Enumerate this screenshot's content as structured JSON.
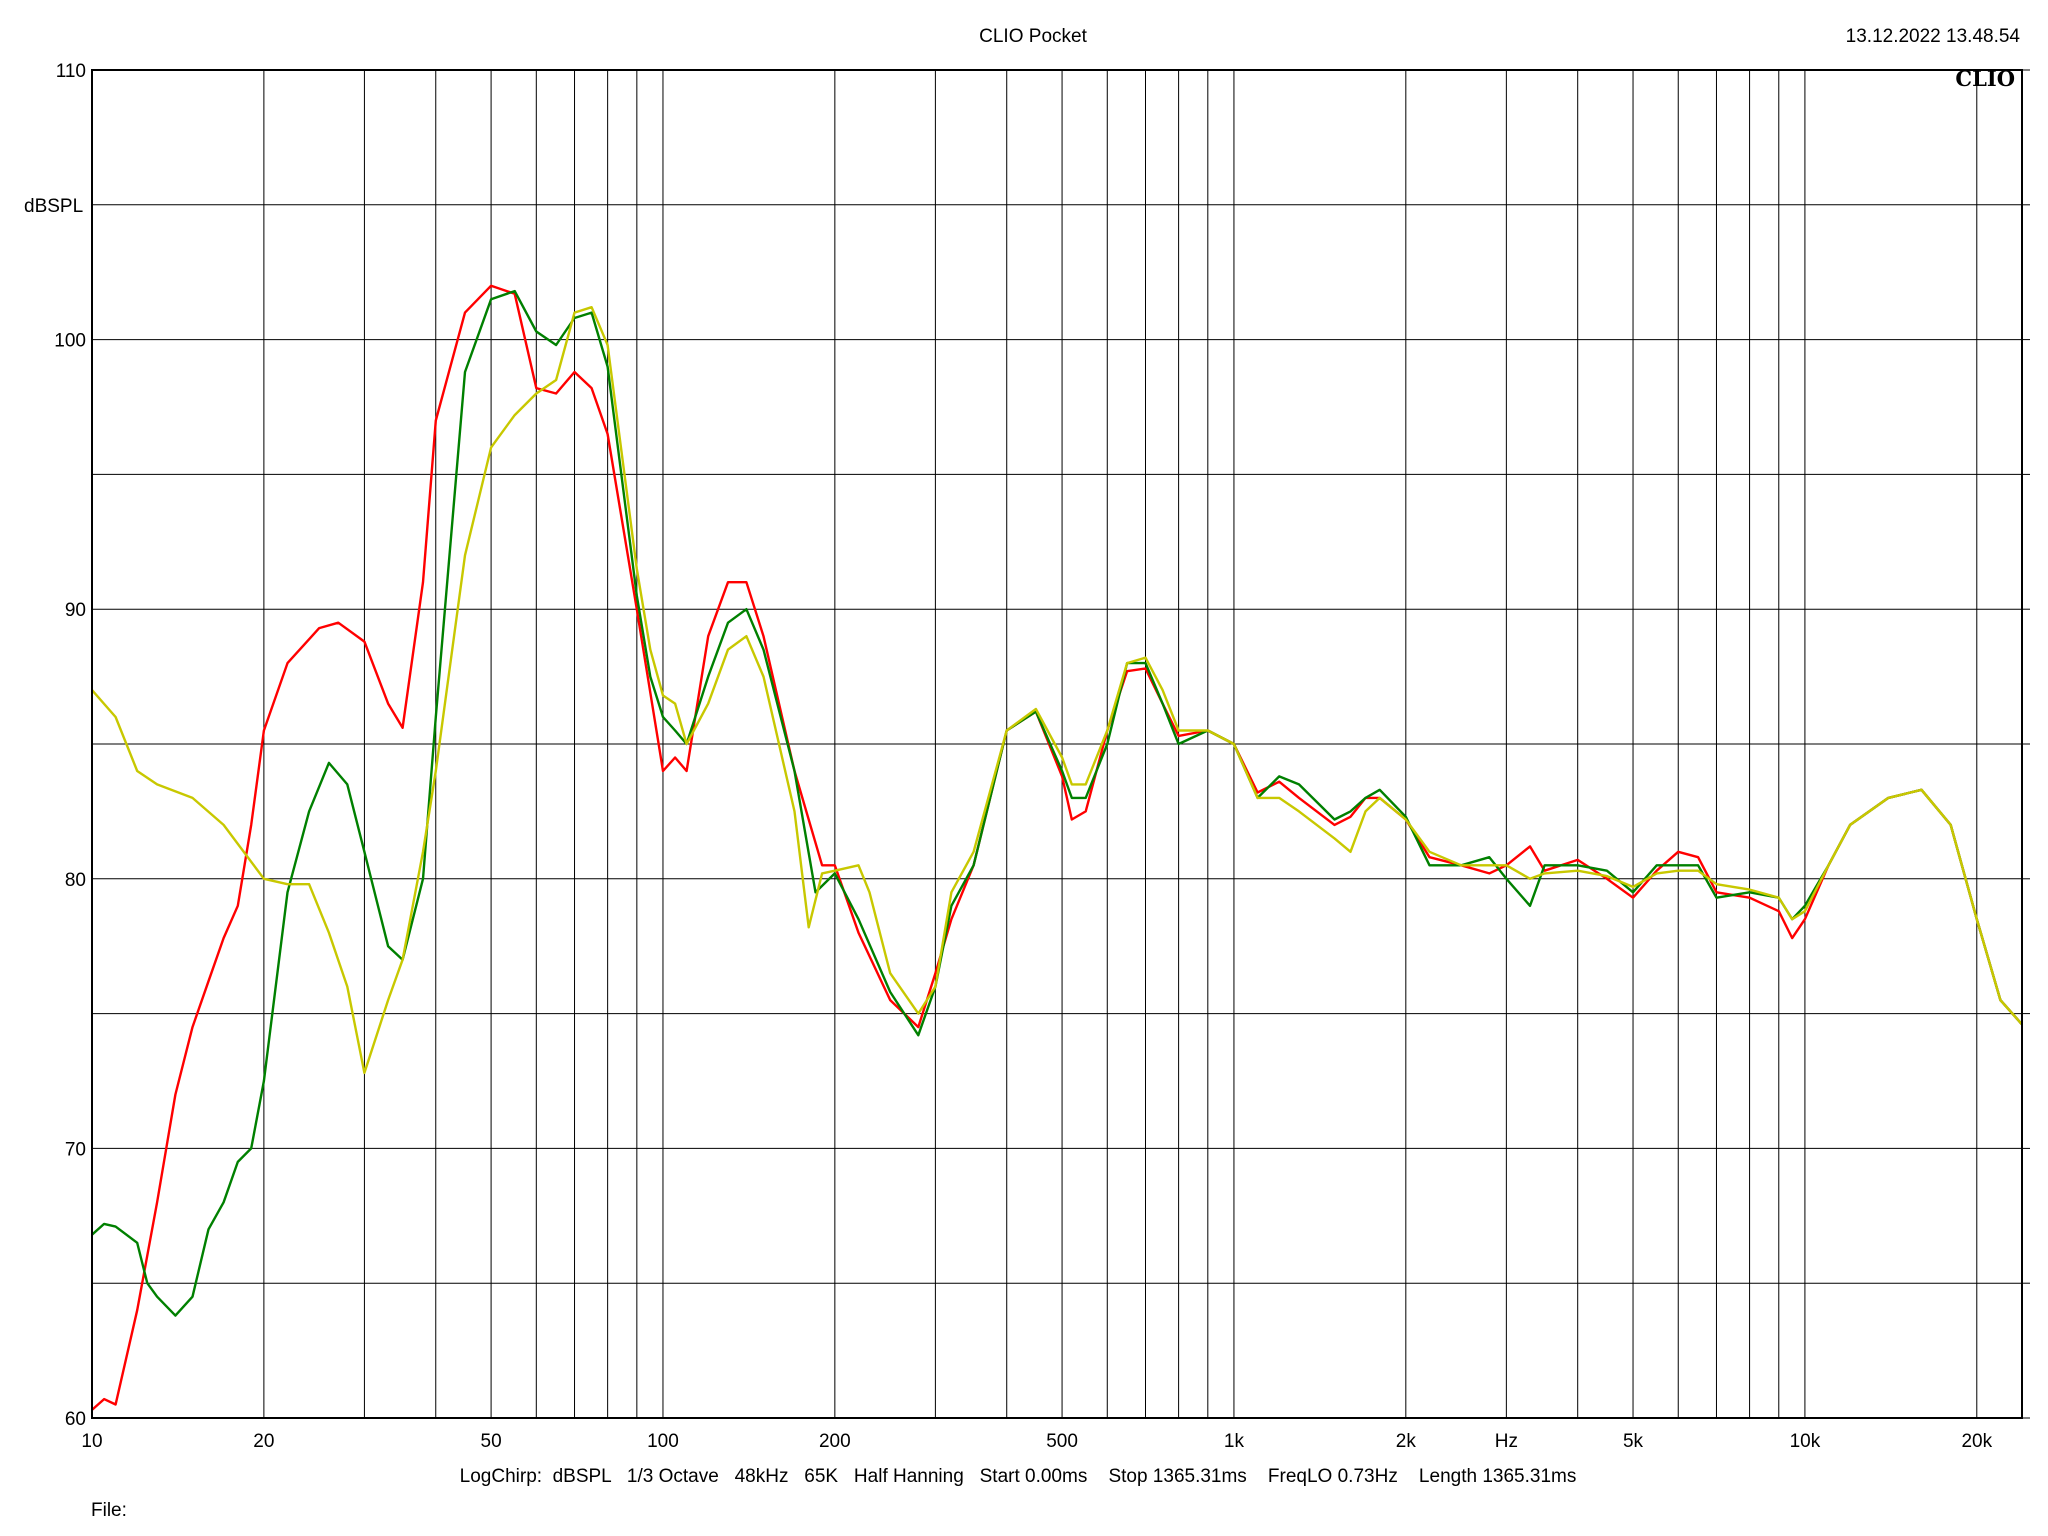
{
  "header": {
    "title": "CLIO Pocket",
    "timestamp": "13.12.2022 13.48.54",
    "logo": "CLIO"
  },
  "footer": {
    "settings": "LogChirp:  dBSPL   1/3 Octave   48kHz   65K   Half Hanning   Start 0.00ms    Stop 1365.31ms    FreqLO 0.73Hz    Length 1365.31ms",
    "file_label": "File:"
  },
  "chart_data": {
    "type": "line",
    "title": "CLIO Pocket",
    "xlabel": "Hz",
    "ylabel": "dBSPL",
    "x_scale": "log",
    "xlim": [
      10,
      24000
    ],
    "ylim": [
      60,
      110
    ],
    "grid": true,
    "x_ticks": [
      {
        "value": 10,
        "label": "10"
      },
      {
        "value": 20,
        "label": "20"
      },
      {
        "value": 50,
        "label": "50"
      },
      {
        "value": 100,
        "label": "100"
      },
      {
        "value": 200,
        "label": "200"
      },
      {
        "value": 500,
        "label": "500"
      },
      {
        "value": 1000,
        "label": "1k"
      },
      {
        "value": 2000,
        "label": "2k"
      },
      {
        "value": 5000,
        "label": "5k"
      },
      {
        "value": 10000,
        "label": "10k"
      },
      {
        "value": 20000,
        "label": "20k"
      }
    ],
    "x_axis_unit_label_at": 3000,
    "x_minor_gridlines": [
      30,
      40,
      60,
      70,
      80,
      90,
      300,
      400,
      600,
      700,
      800,
      900,
      3000,
      4000,
      6000,
      7000,
      8000,
      9000
    ],
    "y_ticks": [
      {
        "value": 110,
        "label": "110"
      },
      {
        "value": 100,
        "label": "100"
      },
      {
        "value": 90,
        "label": "90"
      },
      {
        "value": 80,
        "label": "80"
      },
      {
        "value": 70,
        "label": "70"
      },
      {
        "value": 60,
        "label": "60"
      }
    ],
    "y_axis_unit_label_at": 105,
    "y_gridlines": [
      60,
      65,
      70,
      75,
      80,
      85,
      90,
      95,
      100,
      105,
      110
    ],
    "series": [
      {
        "color": "#ff0000",
        "points": [
          [
            10,
            60.3
          ],
          [
            10.5,
            60.7
          ],
          [
            11,
            60.5
          ],
          [
            12,
            64
          ],
          [
            13,
            68
          ],
          [
            14,
            72
          ],
          [
            15,
            74.5
          ],
          [
            16,
            76.2
          ],
          [
            17,
            77.8
          ],
          [
            18,
            79
          ],
          [
            19,
            82
          ],
          [
            20,
            85.5
          ],
          [
            22,
            88
          ],
          [
            25,
            89.3
          ],
          [
            27,
            89.5
          ],
          [
            30,
            88.8
          ],
          [
            33,
            86.5
          ],
          [
            35,
            85.6
          ],
          [
            38,
            91
          ],
          [
            40,
            97
          ],
          [
            45,
            101
          ],
          [
            50,
            102
          ],
          [
            55,
            101.7
          ],
          [
            60,
            98.2
          ],
          [
            65,
            98
          ],
          [
            70,
            98.8
          ],
          [
            75,
            98.2
          ],
          [
            80,
            96.5
          ],
          [
            90,
            90
          ],
          [
            100,
            84
          ],
          [
            105,
            84.5
          ],
          [
            110,
            84
          ],
          [
            120,
            89
          ],
          [
            130,
            91
          ],
          [
            140,
            91
          ],
          [
            150,
            89
          ],
          [
            170,
            84
          ],
          [
            190,
            80.5
          ],
          [
            200,
            80.5
          ],
          [
            220,
            78
          ],
          [
            250,
            75.5
          ],
          [
            280,
            74.5
          ],
          [
            300,
            76.5
          ],
          [
            320,
            78.5
          ],
          [
            350,
            80.5
          ],
          [
            400,
            85.5
          ],
          [
            450,
            86.2
          ],
          [
            500,
            83.8
          ],
          [
            520,
            82.2
          ],
          [
            550,
            82.5
          ],
          [
            600,
            85.5
          ],
          [
            650,
            87.7
          ],
          [
            700,
            87.8
          ],
          [
            750,
            86.5
          ],
          [
            800,
            85.3
          ],
          [
            900,
            85.5
          ],
          [
            1000,
            85
          ],
          [
            1100,
            83.2
          ],
          [
            1200,
            83.6
          ],
          [
            1300,
            83
          ],
          [
            1500,
            82
          ],
          [
            1600,
            82.3
          ],
          [
            1700,
            83
          ],
          [
            1800,
            83
          ],
          [
            2000,
            82.2
          ],
          [
            2200,
            80.8
          ],
          [
            2500,
            80.5
          ],
          [
            2800,
            80.2
          ],
          [
            3000,
            80.5
          ],
          [
            3300,
            81.2
          ],
          [
            3500,
            80.3
          ],
          [
            4000,
            80.7
          ],
          [
            4500,
            80
          ],
          [
            5000,
            79.3
          ],
          [
            5500,
            80.3
          ],
          [
            6000,
            81
          ],
          [
            6500,
            80.8
          ],
          [
            7000,
            79.5
          ],
          [
            8000,
            79.3
          ],
          [
            9000,
            78.8
          ],
          [
            9500,
            77.8
          ],
          [
            10000,
            78.5
          ],
          [
            11000,
            80.5
          ],
          [
            12000,
            82
          ],
          [
            14000,
            83
          ],
          [
            16000,
            83.3
          ],
          [
            18000,
            82
          ],
          [
            20000,
            78.5
          ],
          [
            22000,
            75.5
          ],
          [
            24000,
            74.6
          ]
        ]
      },
      {
        "color": "#008000",
        "points": [
          [
            10,
            66.8
          ],
          [
            10.5,
            67.2
          ],
          [
            11,
            67.1
          ],
          [
            12,
            66.5
          ],
          [
            12.5,
            65
          ],
          [
            13,
            64.5
          ],
          [
            14,
            63.8
          ],
          [
            15,
            64.5
          ],
          [
            16,
            67
          ],
          [
            17,
            68
          ],
          [
            18,
            69.5
          ],
          [
            19,
            70
          ],
          [
            20,
            72.5
          ],
          [
            22,
            79.5
          ],
          [
            24,
            82.5
          ],
          [
            26,
            84.3
          ],
          [
            28,
            83.5
          ],
          [
            30,
            81
          ],
          [
            33,
            77.5
          ],
          [
            35,
            77
          ],
          [
            38,
            80
          ],
          [
            40,
            86
          ],
          [
            45,
            98.8
          ],
          [
            50,
            101.5
          ],
          [
            55,
            101.8
          ],
          [
            60,
            100.3
          ],
          [
            65,
            99.8
          ],
          [
            70,
            100.8
          ],
          [
            75,
            101
          ],
          [
            80,
            99
          ],
          [
            90,
            90.5
          ],
          [
            95,
            87.5
          ],
          [
            100,
            86
          ],
          [
            105,
            85.5
          ],
          [
            110,
            85
          ],
          [
            120,
            87.5
          ],
          [
            130,
            89.5
          ],
          [
            140,
            90
          ],
          [
            150,
            88.5
          ],
          [
            170,
            84
          ],
          [
            185,
            79.5
          ],
          [
            200,
            80.2
          ],
          [
            220,
            78.5
          ],
          [
            250,
            75.8
          ],
          [
            280,
            74.2
          ],
          [
            300,
            76
          ],
          [
            320,
            79
          ],
          [
            350,
            80.5
          ],
          [
            400,
            85.5
          ],
          [
            450,
            86.2
          ],
          [
            500,
            84
          ],
          [
            520,
            83
          ],
          [
            550,
            83
          ],
          [
            600,
            85
          ],
          [
            650,
            88
          ],
          [
            700,
            88
          ],
          [
            750,
            86.5
          ],
          [
            800,
            85
          ],
          [
            900,
            85.5
          ],
          [
            1000,
            85
          ],
          [
            1100,
            83
          ],
          [
            1200,
            83.8
          ],
          [
            1300,
            83.5
          ],
          [
            1500,
            82.2
          ],
          [
            1600,
            82.5
          ],
          [
            1700,
            83
          ],
          [
            1800,
            83.3
          ],
          [
            2000,
            82.3
          ],
          [
            2200,
            80.5
          ],
          [
            2500,
            80.5
          ],
          [
            2800,
            80.8
          ],
          [
            3000,
            80
          ],
          [
            3300,
            79
          ],
          [
            3500,
            80.5
          ],
          [
            4000,
            80.5
          ],
          [
            4500,
            80.3
          ],
          [
            5000,
            79.5
          ],
          [
            5500,
            80.5
          ],
          [
            6000,
            80.5
          ],
          [
            6500,
            80.5
          ],
          [
            7000,
            79.3
          ],
          [
            8000,
            79.5
          ],
          [
            9000,
            79.3
          ],
          [
            9500,
            78.5
          ],
          [
            10000,
            79
          ],
          [
            11000,
            80.5
          ],
          [
            12000,
            82
          ],
          [
            14000,
            83
          ],
          [
            16000,
            83.3
          ],
          [
            18000,
            82
          ],
          [
            20000,
            78.5
          ],
          [
            22000,
            75.5
          ],
          [
            24000,
            74.6
          ]
        ]
      },
      {
        "color": "#c8c800",
        "points": [
          [
            10,
            87
          ],
          [
            11,
            86
          ],
          [
            12,
            84
          ],
          [
            13,
            83.5
          ],
          [
            15,
            83
          ],
          [
            17,
            82
          ],
          [
            20,
            80
          ],
          [
            22,
            79.8
          ],
          [
            24,
            79.8
          ],
          [
            26,
            78
          ],
          [
            28,
            76
          ],
          [
            30,
            72.8
          ],
          [
            33,
            75.5
          ],
          [
            35,
            77
          ],
          [
            38,
            81
          ],
          [
            40,
            84
          ],
          [
            45,
            92
          ],
          [
            50,
            96
          ],
          [
            55,
            97.2
          ],
          [
            60,
            98
          ],
          [
            65,
            98.5
          ],
          [
            70,
            101
          ],
          [
            75,
            101.2
          ],
          [
            80,
            99.8
          ],
          [
            90,
            91.5
          ],
          [
            95,
            88.5
          ],
          [
            100,
            86.8
          ],
          [
            105,
            86.5
          ],
          [
            110,
            85
          ],
          [
            120,
            86.5
          ],
          [
            130,
            88.5
          ],
          [
            140,
            89
          ],
          [
            150,
            87.5
          ],
          [
            170,
            82.5
          ],
          [
            180,
            78.2
          ],
          [
            190,
            80.2
          ],
          [
            200,
            80.3
          ],
          [
            220,
            80.5
          ],
          [
            230,
            79.5
          ],
          [
            250,
            76.5
          ],
          [
            280,
            75
          ],
          [
            300,
            76
          ],
          [
            320,
            79.5
          ],
          [
            350,
            81
          ],
          [
            400,
            85.5
          ],
          [
            450,
            86.3
          ],
          [
            500,
            84.5
          ],
          [
            520,
            83.5
          ],
          [
            550,
            83.5
          ],
          [
            600,
            85.5
          ],
          [
            650,
            88
          ],
          [
            700,
            88.2
          ],
          [
            750,
            87
          ],
          [
            800,
            85.5
          ],
          [
            900,
            85.5
          ],
          [
            1000,
            85
          ],
          [
            1100,
            83
          ],
          [
            1200,
            83
          ],
          [
            1300,
            82.5
          ],
          [
            1500,
            81.5
          ],
          [
            1600,
            81
          ],
          [
            1700,
            82.5
          ],
          [
            1800,
            83
          ],
          [
            2000,
            82.2
          ],
          [
            2200,
            81
          ],
          [
            2500,
            80.5
          ],
          [
            2800,
            80.5
          ],
          [
            3000,
            80.5
          ],
          [
            3300,
            80
          ],
          [
            3500,
            80.2
          ],
          [
            4000,
            80.3
          ],
          [
            4500,
            80.1
          ],
          [
            5000,
            79.7
          ],
          [
            5500,
            80.2
          ],
          [
            6000,
            80.3
          ],
          [
            6500,
            80.3
          ],
          [
            7000,
            79.8
          ],
          [
            8000,
            79.6
          ],
          [
            9000,
            79.3
          ],
          [
            9500,
            78.5
          ],
          [
            10000,
            78.8
          ],
          [
            11000,
            80.5
          ],
          [
            12000,
            82
          ],
          [
            14000,
            83
          ],
          [
            16000,
            83.3
          ],
          [
            18000,
            82
          ],
          [
            20000,
            78.5
          ],
          [
            22000,
            75.5
          ],
          [
            24000,
            74.6
          ]
        ]
      }
    ]
  }
}
